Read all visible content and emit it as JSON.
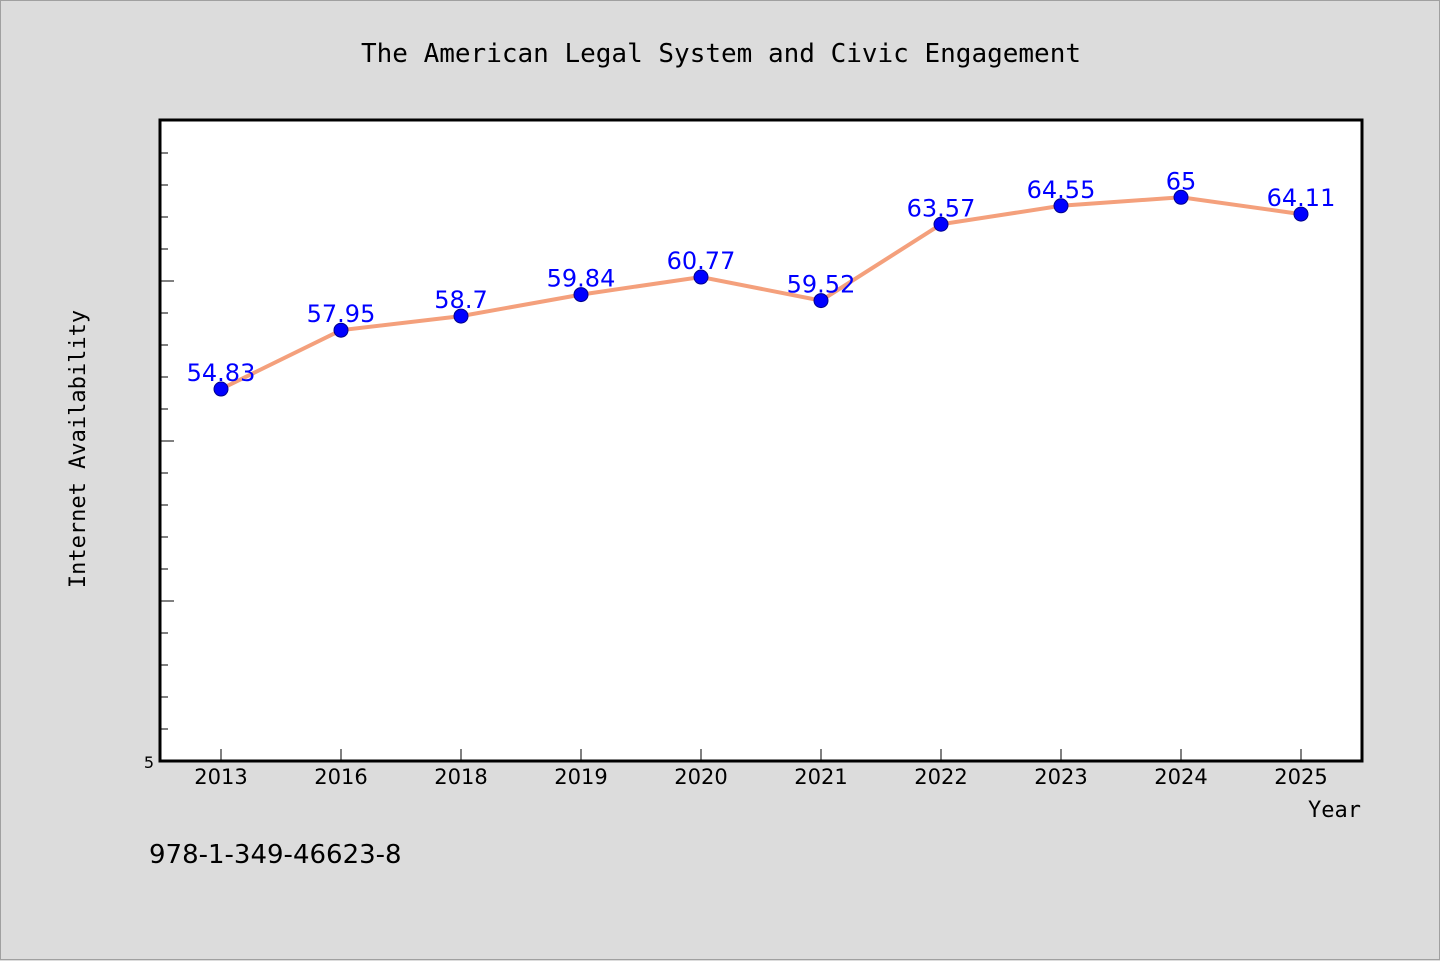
{
  "chart_data": {
    "type": "line",
    "title": "The American Legal System and Civic Engagement",
    "xlabel": "Year",
    "ylabel": "Internet Availability",
    "categories": [
      "2013",
      "2016",
      "2018",
      "2019",
      "2020",
      "2021",
      "2022",
      "2023",
      "2024",
      "2025"
    ],
    "values": [
      54.83,
      57.95,
      58.7,
      59.84,
      60.77,
      59.52,
      63.57,
      64.55,
      65,
      64.11
    ],
    "data_labels": [
      "54.83",
      "57.95",
      "58.7",
      "59.84",
      "60.77",
      "59.52",
      "63.57",
      "64.55",
      "65",
      "64.11"
    ],
    "ytick_label": "5",
    "ylim": [
      35.1,
      69.1
    ],
    "grid": false,
    "line_color": "#f4a07c",
    "marker_color": "#0000ff",
    "label_color": "#0000ff"
  },
  "footer": {
    "isbn": "978-1-349-46623-8"
  }
}
